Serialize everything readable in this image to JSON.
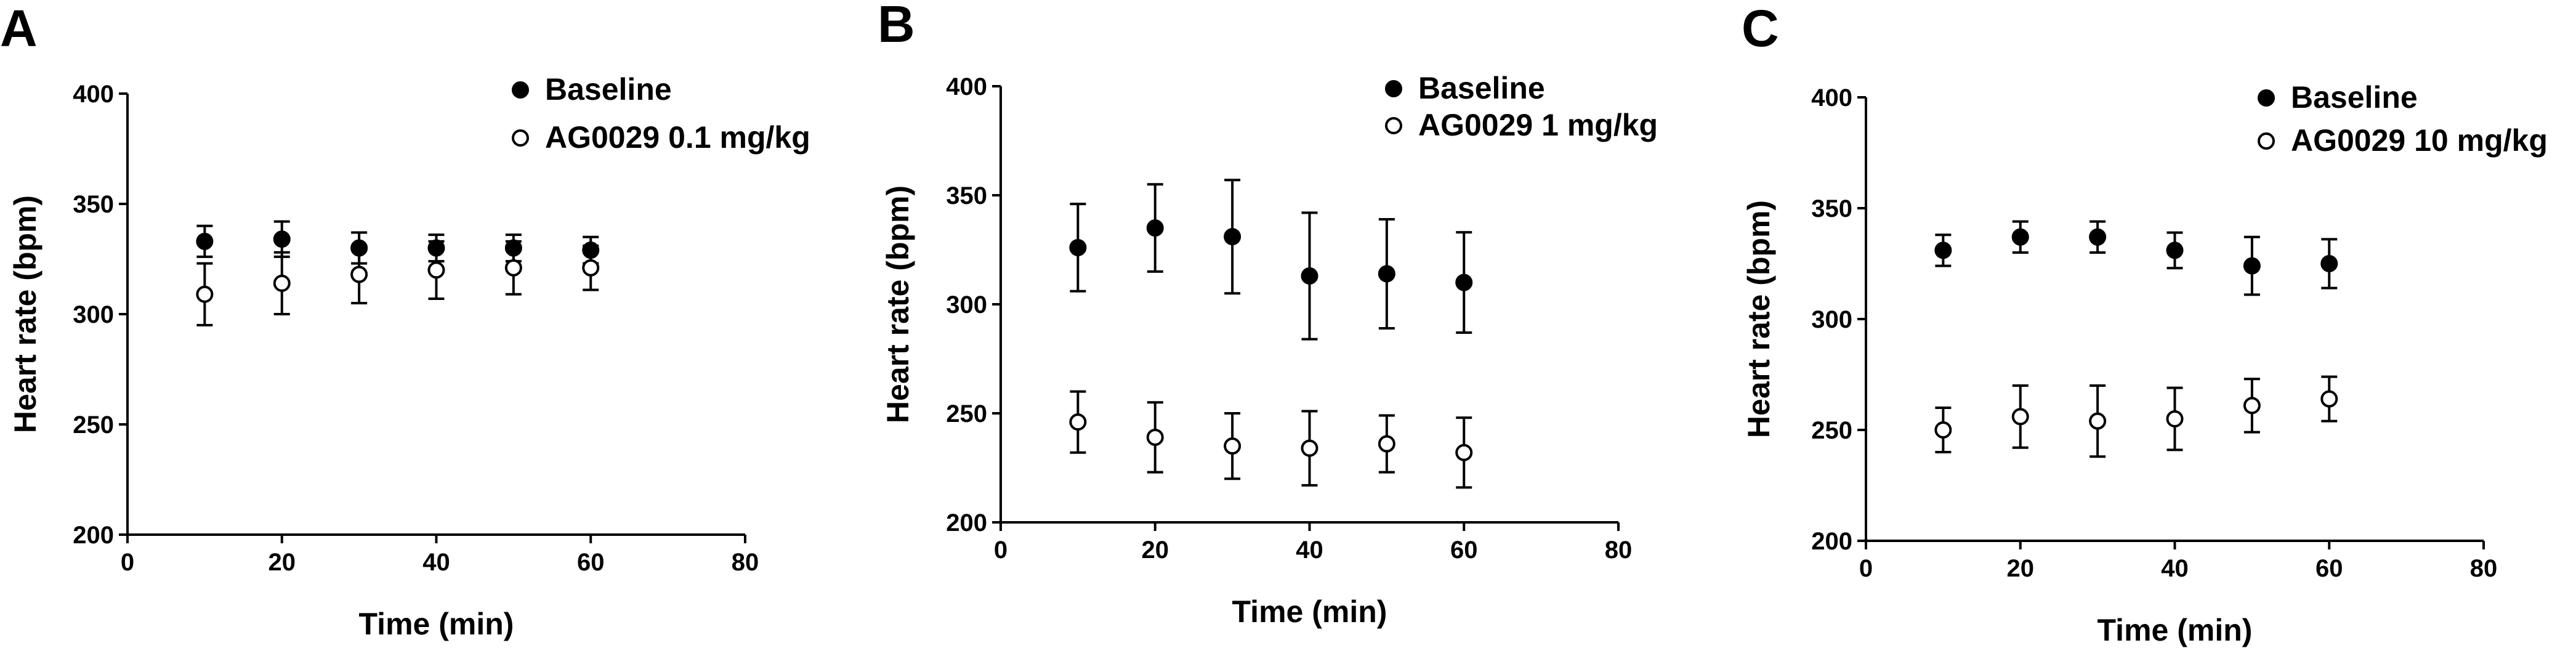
{
  "chart_data": [
    {
      "panel_label": "A",
      "type": "scatter",
      "xlabel": "Time (min)",
      "ylabel": "Heart rate (bpm)",
      "xlim": [
        0,
        80
      ],
      "ylim": [
        200,
        400
      ],
      "xticks": [
        0,
        20,
        40,
        60,
        80
      ],
      "yticks": [
        200,
        250,
        300,
        350,
        400
      ],
      "legend_position": "top-right",
      "grid": false,
      "x": [
        10,
        20,
        30,
        40,
        50,
        60
      ],
      "series": [
        {
          "name": "Baseline",
          "marker": "filled-circle",
          "values": [
            333,
            334,
            330,
            330,
            330,
            329
          ],
          "errors": [
            7,
            8,
            7,
            6,
            6,
            6
          ]
        },
        {
          "name": "AG0029 0.1 mg/kg",
          "marker": "open-circle",
          "values": [
            309,
            314,
            318,
            320,
            321,
            321
          ],
          "errors": [
            14,
            14,
            13,
            13,
            12,
            10
          ]
        }
      ]
    },
    {
      "panel_label": "B",
      "type": "scatter",
      "xlabel": "Time (min)",
      "ylabel": "Heart rate (bpm)",
      "xlim": [
        0,
        80
      ],
      "ylim": [
        200,
        400
      ],
      "xticks": [
        0,
        20,
        40,
        60,
        80
      ],
      "yticks": [
        200,
        250,
        300,
        350,
        400
      ],
      "legend_position": "top-right",
      "grid": false,
      "x": [
        10,
        20,
        30,
        40,
        50,
        60
      ],
      "series": [
        {
          "name": "Baseline",
          "marker": "filled-circle",
          "values": [
            326,
            335,
            331,
            313,
            314,
            310
          ],
          "errors": [
            20,
            20,
            26,
            29,
            25,
            23
          ]
        },
        {
          "name": "AG0029 1 mg/kg",
          "marker": "open-circle",
          "values": [
            246,
            239,
            235,
            234,
            236,
            232
          ],
          "errors": [
            14,
            16,
            15,
            17,
            13,
            16
          ]
        }
      ]
    },
    {
      "panel_label": "C",
      "type": "scatter",
      "xlabel": "Time (min)",
      "ylabel": "Heart rate (bpm)",
      "xlim": [
        0,
        80
      ],
      "ylim": [
        200,
        400
      ],
      "xticks": [
        0,
        20,
        40,
        60,
        80
      ],
      "yticks": [
        200,
        250,
        300,
        350,
        400
      ],
      "legend_position": "top-right",
      "grid": false,
      "x": [
        10,
        20,
        30,
        40,
        50,
        60
      ],
      "series": [
        {
          "name": "Baseline",
          "marker": "filled-circle",
          "values": [
            331,
            337,
            337,
            331,
            324,
            325
          ],
          "errors": [
            7,
            7,
            7,
            8,
            13,
            11
          ]
        },
        {
          "name": "AG0029 10 mg/kg",
          "marker": "open-circle",
          "values": [
            250,
            256,
            254,
            255,
            261,
            264
          ],
          "errors": [
            10,
            14,
            16,
            14,
            12,
            10
          ]
        }
      ]
    }
  ]
}
